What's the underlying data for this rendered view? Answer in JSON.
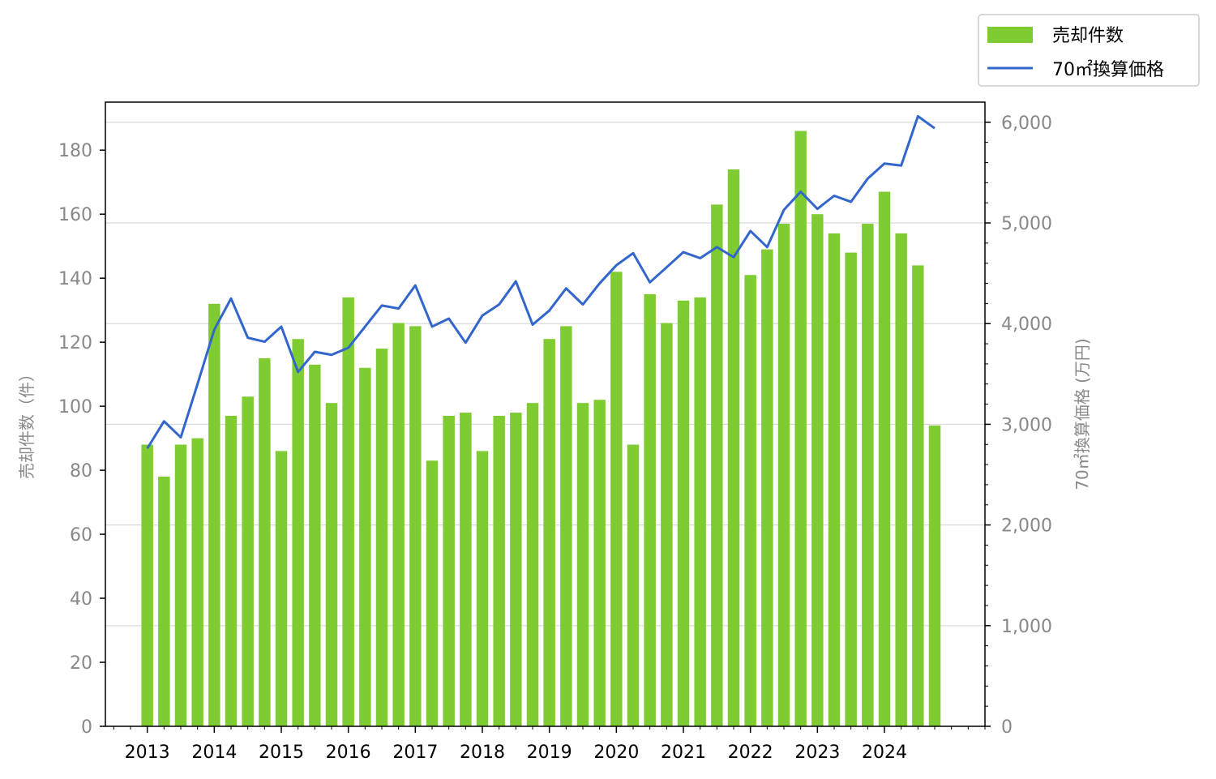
{
  "chart_data": {
    "type": "bar+line",
    "x_tick_labels": [
      "2013",
      "2014",
      "2015",
      "2016",
      "2017",
      "2018",
      "2019",
      "2020",
      "2021",
      "2022",
      "2023",
      "2024"
    ],
    "quarters_per_year": 4,
    "x_range_quarters": [
      -2.5,
      50
    ],
    "ylabel_left": "売却件数（件）",
    "ylabel_right": "70㎡換算価格 (万円)",
    "ylim_left": [
      0,
      195
    ],
    "ylim_right": [
      0,
      6200
    ],
    "yticks_left": [
      0,
      20,
      40,
      60,
      80,
      100,
      120,
      140,
      160,
      180
    ],
    "yticks_right": [
      0,
      1000,
      2000,
      3000,
      4000,
      5000,
      6000
    ],
    "yticks_right_labels": [
      "0",
      "1,000",
      "2,000",
      "3,000",
      "4,000",
      "5,000",
      "6,000"
    ],
    "grid": "horizontal (right axis)",
    "legend_position": "top-right, outside plot",
    "series": [
      {
        "name": "売却件数",
        "type": "bar",
        "axis": "left",
        "color": "#7fcb32",
        "values": [
          88,
          78,
          88,
          90,
          132,
          97,
          103,
          115,
          86,
          121,
          113,
          101,
          134,
          112,
          118,
          126,
          125,
          83,
          97,
          98,
          86,
          97,
          98,
          101,
          121,
          125,
          101,
          102,
          142,
          88,
          135,
          126,
          133,
          134,
          163,
          174,
          141,
          149,
          157,
          186,
          160,
          154,
          148,
          157,
          167,
          154,
          144,
          94
        ]
      },
      {
        "name": "70㎡換算価格",
        "type": "line",
        "axis": "right",
        "color": "#3366cc",
        "values": [
          2760,
          3030,
          2870,
          3400,
          3940,
          4250,
          3860,
          3820,
          3970,
          3520,
          3720,
          3690,
          3760,
          3970,
          4180,
          4150,
          4380,
          3970,
          4050,
          3810,
          4080,
          4190,
          4420,
          3990,
          4130,
          4350,
          4190,
          4400,
          4580,
          4700,
          4410,
          4560,
          4710,
          4650,
          4760,
          4660,
          4920,
          4760,
          5130,
          5310,
          5140,
          5270,
          5210,
          5440,
          5590,
          5570,
          6060,
          5940
        ]
      }
    ]
  }
}
